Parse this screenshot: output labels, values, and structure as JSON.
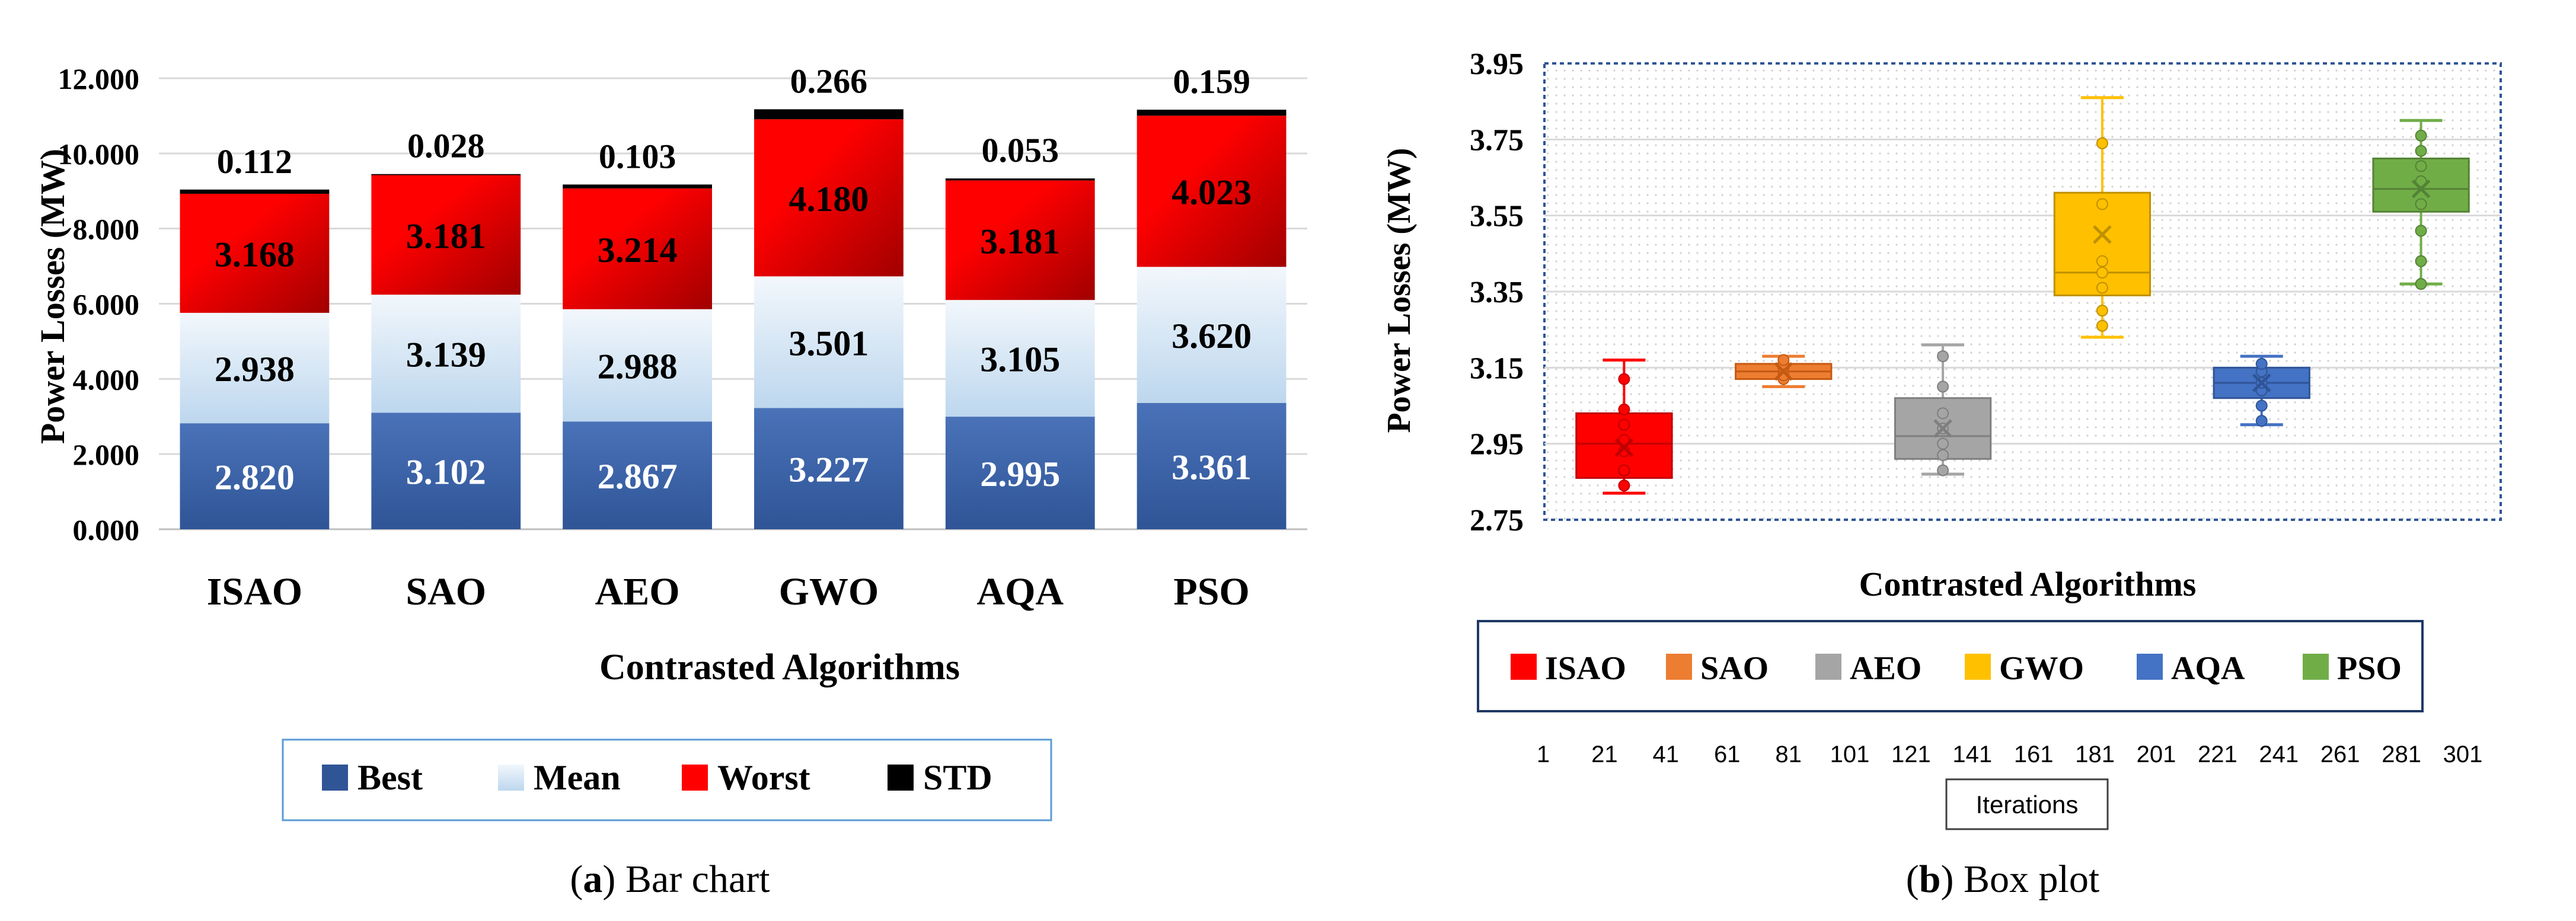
{
  "colors": {
    "best": "#2f5597",
    "best_light": "#4a72b8",
    "mean": "#bdd7ee",
    "mean_light": "#f2f7fc",
    "worst": "#ff0000",
    "worst_dark": "#a10000",
    "std": "#000000",
    "isao": "#ff0000",
    "sao": "#ed7d31",
    "aeo": "#a5a5a5",
    "gwo": "#ffc000",
    "aqa": "#4472c4",
    "pso": "#70ad47",
    "legend_border_a": "#5b9bd5",
    "legend_border_b": "#1f3864",
    "grid": "#d9d9d9",
    "axis": "#bfbfbf"
  },
  "chart_data": [
    {
      "type": "bar",
      "stacked": true,
      "title": "",
      "xlabel": "Contrasted Algorithms",
      "ylabel": "Power Losses (MW)",
      "ylim": [
        0,
        12
      ],
      "yticks": [
        "0.000",
        "2.000",
        "4.000",
        "6.000",
        "8.000",
        "10.000",
        "12.000"
      ],
      "grid": true,
      "legend_position": "bottom",
      "categories": [
        "ISAO",
        "SAO",
        "AEO",
        "GWO",
        "AQA",
        "PSO"
      ],
      "series": [
        {
          "name": "Best",
          "values": [
            2.82,
            3.102,
            2.867,
            3.227,
            2.995,
            3.361
          ],
          "labels": [
            "2.820",
            "3.102",
            "2.867",
            "3.227",
            "2.995",
            "3.361"
          ]
        },
        {
          "name": "Mean",
          "values": [
            2.938,
            3.139,
            2.988,
            3.501,
            3.105,
            3.62
          ],
          "labels": [
            "2.938",
            "3.139",
            "2.988",
            "3.501",
            "3.105",
            "3.620"
          ]
        },
        {
          "name": "Worst",
          "values": [
            3.168,
            3.181,
            3.214,
            4.18,
            3.181,
            4.023
          ],
          "labels": [
            "3.168",
            "3.181",
            "3.214",
            "4.180",
            "3.181",
            "4.023"
          ]
        },
        {
          "name": "STD",
          "values": [
            0.112,
            0.028,
            0.103,
            0.266,
            0.053,
            0.159
          ],
          "labels": [
            "0.112",
            "0.028",
            "0.103",
            "0.266",
            "0.053",
            "0.159"
          ]
        }
      ]
    },
    {
      "type": "box",
      "title": "",
      "xlabel": "Contrasted Algorithms",
      "ylabel": "Power Losses (MW)",
      "ylim": [
        2.75,
        3.95
      ],
      "yticks": [
        "2.75",
        "2.95",
        "3.15",
        "3.35",
        "3.55",
        "3.75",
        "3.95"
      ],
      "grid": true,
      "legend_position": "bottom",
      "secondary_xlabel": "Iterations",
      "secondary_xticks": [
        "1",
        "21",
        "41",
        "61",
        "81",
        "101",
        "121",
        "141",
        "161",
        "181",
        "201",
        "221",
        "241",
        "261",
        "281",
        "301"
      ],
      "categories": [
        "ISAO",
        "SAO",
        "AEO",
        "GWO",
        "AQA",
        "PSO"
      ],
      "boxes": [
        {
          "name": "ISAO",
          "min": 2.82,
          "q1": 2.86,
          "median": 2.95,
          "q3": 3.03,
          "max": 3.17,
          "mean": 2.94,
          "points": [
            2.84,
            2.88,
            2.93,
            2.96,
            3.0,
            3.04,
            3.12
          ]
        },
        {
          "name": "SAO",
          "min": 3.1,
          "q1": 3.12,
          "median": 3.14,
          "q3": 3.16,
          "max": 3.18,
          "mean": 3.14,
          "points": [
            3.12,
            3.13,
            3.15,
            3.16,
            3.17
          ]
        },
        {
          "name": "AEO",
          "min": 2.87,
          "q1": 2.91,
          "median": 2.97,
          "q3": 3.07,
          "max": 3.21,
          "mean": 2.99,
          "points": [
            2.88,
            2.92,
            2.95,
            2.99,
            3.03,
            3.1,
            3.18
          ]
        },
        {
          "name": "GWO",
          "min": 3.23,
          "q1": 3.34,
          "median": 3.4,
          "q3": 3.61,
          "max": 3.86,
          "mean": 3.5,
          "points": [
            3.26,
            3.3,
            3.36,
            3.4,
            3.43,
            3.58,
            3.74
          ]
        },
        {
          "name": "AQA",
          "min": 3.0,
          "q1": 3.07,
          "median": 3.11,
          "q3": 3.15,
          "max": 3.18,
          "mean": 3.11,
          "points": [
            3.01,
            3.05,
            3.09,
            3.11,
            3.14,
            3.16
          ]
        },
        {
          "name": "PSO",
          "min": 3.37,
          "q1": 3.56,
          "median": 3.62,
          "q3": 3.7,
          "max": 3.8,
          "mean": 3.62,
          "points": [
            3.37,
            3.43,
            3.51,
            3.58,
            3.64,
            3.68,
            3.72,
            3.76
          ]
        }
      ]
    }
  ],
  "captions": {
    "a": {
      "label": "a",
      "text": " Bar chart"
    },
    "b": {
      "label": "b",
      "text": " Box plot"
    }
  }
}
